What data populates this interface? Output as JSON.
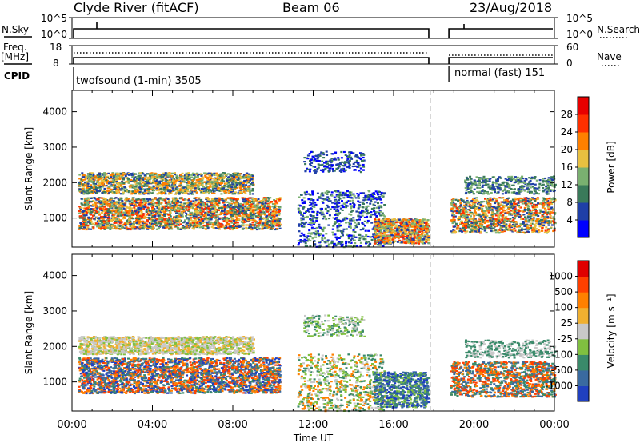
{
  "header": {
    "station": "Clyde River (fitACF)",
    "beam": "Beam 06",
    "date": "23/Aug/2018"
  },
  "top_panels": {
    "nsky_label": "N.Sky",
    "nsky_ticks": [
      "10^5",
      "10^0"
    ],
    "nsearch_label": "N.Search",
    "freq_label_1": "Freq.",
    "freq_label_2": "[MHz]",
    "freq_ticks": [
      "18",
      "8"
    ],
    "nave_label": "Nave",
    "nave_ticks": [
      "60",
      "0"
    ],
    "cpid_label": "CPID",
    "cpid_1": "twofsound (1-min) 3505",
    "cpid_2": "normal (fast) 151"
  },
  "chart_data": [
    {
      "type": "heatmap",
      "name": "power",
      "ylabel": "Slant Range [km]",
      "y_ticks": [
        1000,
        2000,
        3000,
        4000
      ],
      "x_ticks": [
        "00:00",
        "04:00",
        "08:00",
        "12:00",
        "16:00",
        "20:00",
        "00:00"
      ],
      "xlim_hours": [
        0,
        24
      ],
      "data_gap_hours": [
        17.75,
        18.75
      ],
      "colorbar": {
        "label": "Power [dB]",
        "ticks": [
          "28",
          "24",
          "20",
          "16",
          "12",
          "8",
          "4"
        ],
        "colors": [
          "#0000ff",
          "#1f3fa8",
          "#3a7a5a",
          "#7ab070",
          "#e8c040",
          "#ff8000",
          "#ff3000",
          "#e80000"
        ]
      }
    },
    {
      "type": "heatmap",
      "name": "velocity",
      "ylabel": "Slant Range [km]",
      "y_ticks": [
        1000,
        2000,
        3000,
        4000
      ],
      "x_ticks": [
        "00:00",
        "04:00",
        "08:00",
        "12:00",
        "16:00",
        "20:00",
        "00:00"
      ],
      "xlabel": "Time UT",
      "xlim_hours": [
        0,
        24
      ],
      "data_gap_hours": [
        17.75,
        18.75
      ],
      "colorbar": {
        "label": "Velocity [m s⁻¹]",
        "ticks": [
          "1000",
          "500",
          "100",
          "25",
          "-25",
          "-100",
          "-500",
          "-1000"
        ],
        "colors": [
          "#2040c0",
          "#3a6aa0",
          "#3a8a6a",
          "#80c040",
          "#c8c8c8",
          "#f0b030",
          "#ff8000",
          "#ff4000",
          "#e00000"
        ]
      }
    }
  ],
  "colors": {
    "gap_line": "#aaaaaa",
    "axis": "#000000"
  }
}
